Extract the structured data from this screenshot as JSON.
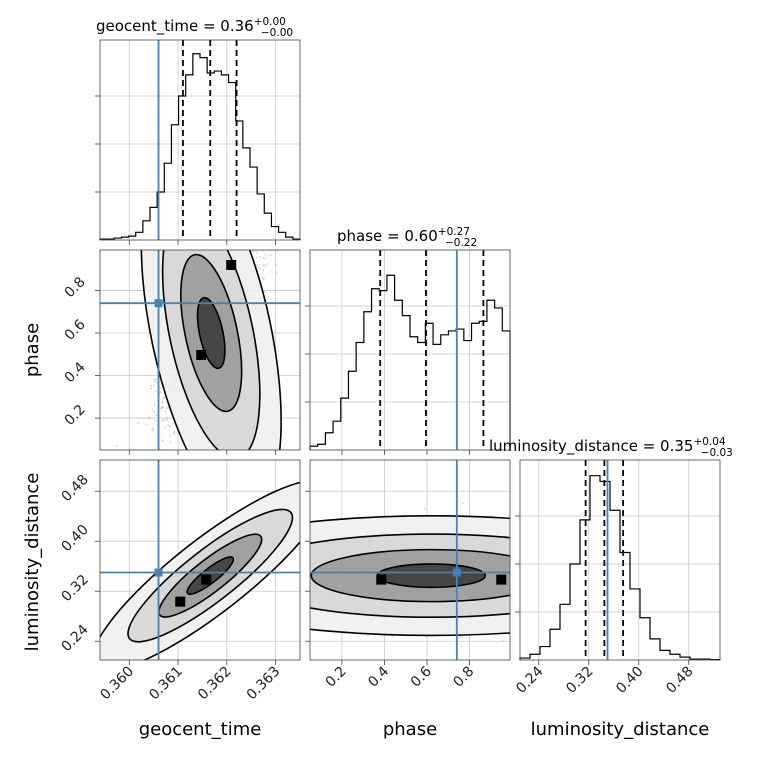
{
  "chart_data": {
    "type": "corner",
    "parameters": [
      "geocent_time",
      "phase",
      "luminosity_distance"
    ],
    "ranges": {
      "geocent_time": [
        0.3594,
        0.3635
      ],
      "phase": [
        0.05,
        0.99
      ],
      "luminosity_distance": [
        0.21,
        0.53
      ]
    },
    "injection": {
      "geocent_time": 0.3606,
      "phase": 0.74,
      "luminosity_distance": 0.35
    },
    "titles": {
      "geocent_time": {
        "prefix": "geocent_time = 0.36",
        "sup": "+0.00",
        "sub": "−0.00"
      },
      "phase": {
        "prefix": "phase = 0.60",
        "sup": "+0.27",
        "sub": "−0.22"
      },
      "luminosity_distance": {
        "prefix": "luminosity_distance = 0.35",
        "sup": "+0.04",
        "sub": "−0.03"
      }
    },
    "quantiles": {
      "geocent_time": [
        0.3611,
        0.36166,
        0.3622
      ],
      "phase": [
        0.38,
        0.595,
        0.865
      ],
      "luminosity_distance": [
        0.315,
        0.345,
        0.375
      ]
    },
    "ticks": {
      "geocent_time": {
        "values": [
          0.36,
          0.361,
          0.362,
          0.363
        ],
        "labels": [
          "0.360",
          "0.361",
          "0.362",
          "0.363"
        ]
      },
      "phase": {
        "values": [
          0.2,
          0.4,
          0.6,
          0.8
        ],
        "labels": [
          "0.2",
          "0.4",
          "0.6",
          "0.8"
        ]
      },
      "luminosity_distance": {
        "values": [
          0.24,
          0.32,
          0.4,
          0.48
        ],
        "labels": [
          "0.24",
          "0.32",
          "0.40",
          "0.48"
        ]
      }
    },
    "histograms": {
      "geocent_time": [
        0.005,
        0.005,
        0.01,
        0.015,
        0.02,
        0.04,
        0.1,
        0.17,
        0.25,
        0.4,
        0.6,
        0.75,
        0.86,
        0.97,
        0.95,
        0.87,
        0.88,
        0.86,
        0.82,
        0.62,
        0.48,
        0.38,
        0.24,
        0.14,
        0.07,
        0.04,
        0.015,
        0.005
      ],
      "phase": [
        0.02,
        0.03,
        0.09,
        0.15,
        0.27,
        0.41,
        0.56,
        0.72,
        0.84,
        0.83,
        0.91,
        0.78,
        0.7,
        0.59,
        0.56,
        0.66,
        0.55,
        0.6,
        0.62,
        0.63,
        0.57,
        0.66,
        0.67,
        0.78,
        0.74,
        0.62
      ],
      "luminosity_distance": [
        0.01,
        0.03,
        0.07,
        0.16,
        0.29,
        0.5,
        0.73,
        0.96,
        0.93,
        0.78,
        0.56,
        0.37,
        0.22,
        0.11,
        0.05,
        0.03,
        0.015,
        0.005,
        0.005,
        0.002
      ]
    },
    "grid": true,
    "injection_color": "#4682b4",
    "scatter_color": "#9e9e9e",
    "contour_color": "#000000"
  }
}
